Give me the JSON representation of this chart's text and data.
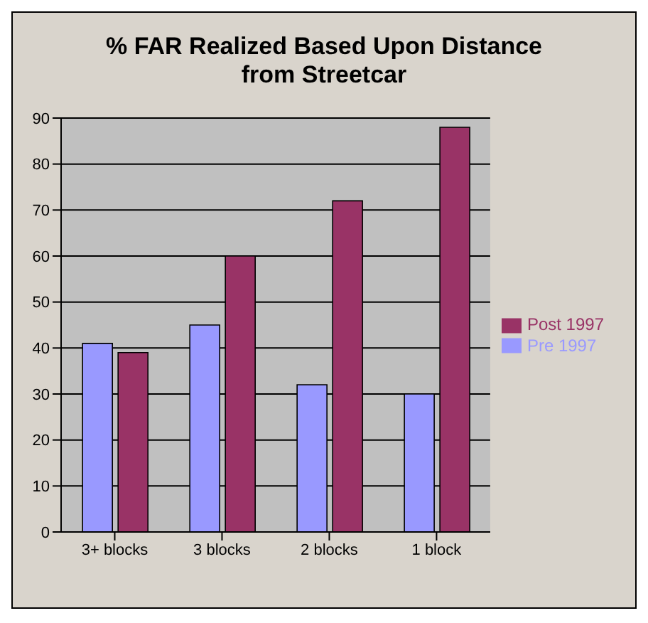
{
  "chart_data": {
    "type": "bar",
    "title": "% FAR Realized Based Upon Distance from Streetcar",
    "categories": [
      "3+ blocks",
      "3 blocks",
      "2 blocks",
      "1 block"
    ],
    "series": [
      {
        "name": "Pre 1997",
        "color": "#9999ff",
        "values": [
          41,
          45,
          32,
          30
        ]
      },
      {
        "name": "Post 1997",
        "color": "#993366",
        "values": [
          39,
          60,
          72,
          88
        ]
      }
    ],
    "ylim": [
      0,
      90
    ],
    "yticks": [
      0,
      10,
      20,
      30,
      40,
      50,
      60,
      70,
      80,
      90
    ],
    "grid": "y",
    "legend": "right"
  }
}
